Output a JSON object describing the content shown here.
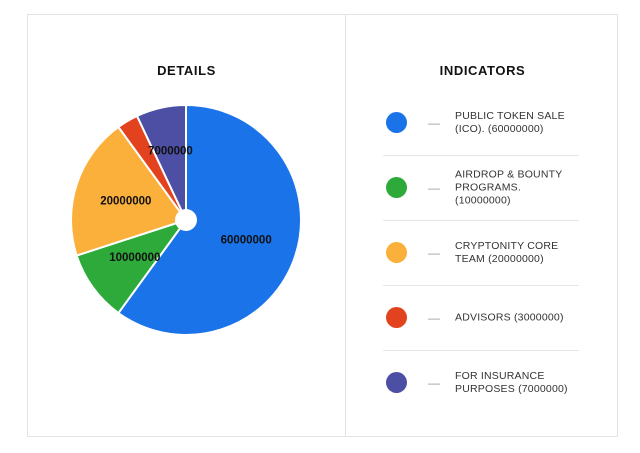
{
  "details_title": "DETAILS",
  "indicators_title": "INDICATORS",
  "legend": [
    {
      "label": "PUBLIC TOKEN SALE (ICO). (60000000)",
      "color": "#1a73e8"
    },
    {
      "label": "AIRDROP & BOUNTY PROGRAMS. (10000000)",
      "color": "#2eaa3a"
    },
    {
      "label": "CRYPTONITY CORE TEAM (20000000)",
      "color": "#fbb03b"
    },
    {
      "label": "ADVISORS (3000000)",
      "color": "#e2431e"
    },
    {
      "label": "FOR INSURANCE PURPOSES (7000000)",
      "color": "#4c4fa3"
    }
  ],
  "legend_dash": "—",
  "chart_data": {
    "type": "pie",
    "categories": [
      "PUBLIC TOKEN SALE (ICO).",
      "AIRDROP & BOUNTY PROGRAMS.",
      "CRYPTONITY CORE TEAM",
      "ADVISORS",
      "FOR INSURANCE PURPOSES"
    ],
    "values": [
      60000000,
      10000000,
      20000000,
      3000000,
      7000000
    ],
    "data_labels": [
      "60000000",
      "10000000",
      "20000000",
      "",
      "7000000"
    ],
    "colors": [
      "#1a73e8",
      "#2eaa3a",
      "#fbb03b",
      "#e2431e",
      "#4c4fa3"
    ],
    "start_angle_deg": 0,
    "direction": "clockwise",
    "center_hole": true
  }
}
